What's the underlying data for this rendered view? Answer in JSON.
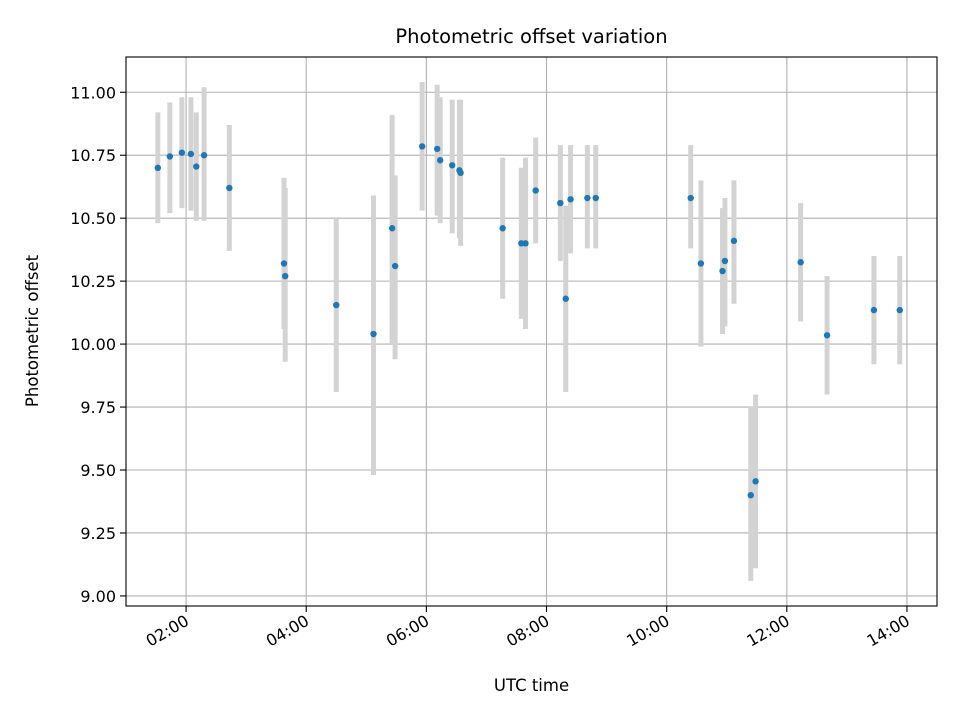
{
  "chart_data": {
    "type": "scatter",
    "title": "Photometric offset variation",
    "xlabel": "UTC time",
    "ylabel": "Photometric offset",
    "x_unit": "hours UTC",
    "xlim": [
      1.0,
      14.5
    ],
    "ylim": [
      8.96,
      11.14
    ],
    "x_ticks": [
      {
        "value": 2,
        "label": "02:00"
      },
      {
        "value": 4,
        "label": "04:00"
      },
      {
        "value": 6,
        "label": "06:00"
      },
      {
        "value": 8,
        "label": "08:00"
      },
      {
        "value": 10,
        "label": "10:00"
      },
      {
        "value": 12,
        "label": "12:00"
      },
      {
        "value": 14,
        "label": "14:00"
      }
    ],
    "y_ticks": [
      {
        "value": 9.0,
        "label": "9.00"
      },
      {
        "value": 9.25,
        "label": "9.25"
      },
      {
        "value": 9.5,
        "label": "9.50"
      },
      {
        "value": 9.75,
        "label": "9.75"
      },
      {
        "value": 10.0,
        "label": "10.00"
      },
      {
        "value": 10.25,
        "label": "10.25"
      },
      {
        "value": 10.5,
        "label": "10.50"
      },
      {
        "value": 10.75,
        "label": "10.75"
      },
      {
        "value": 11.0,
        "label": "11.00"
      }
    ],
    "grid": true,
    "point_color": "#1f77b4",
    "errorbar_color": "#d3d3d3",
    "points": [
      {
        "x": 1.53,
        "y": 10.7,
        "lo": 10.48,
        "hi": 10.92
      },
      {
        "x": 1.73,
        "y": 10.745,
        "lo": 10.52,
        "hi": 10.96
      },
      {
        "x": 1.93,
        "y": 10.76,
        "lo": 10.54,
        "hi": 10.98
      },
      {
        "x": 2.08,
        "y": 10.755,
        "lo": 10.53,
        "hi": 10.98
      },
      {
        "x": 2.17,
        "y": 10.705,
        "lo": 10.49,
        "hi": 10.92
      },
      {
        "x": 2.3,
        "y": 10.75,
        "lo": 10.49,
        "hi": 11.02
      },
      {
        "x": 2.72,
        "y": 10.62,
        "lo": 10.37,
        "hi": 10.87
      },
      {
        "x": 3.63,
        "y": 10.32,
        "lo": 10.06,
        "hi": 10.66
      },
      {
        "x": 3.65,
        "y": 10.27,
        "lo": 9.93,
        "hi": 10.62
      },
      {
        "x": 4.5,
        "y": 10.155,
        "lo": 9.81,
        "hi": 10.5
      },
      {
        "x": 5.12,
        "y": 10.04,
        "lo": 9.48,
        "hi": 10.59
      },
      {
        "x": 5.43,
        "y": 10.46,
        "lo": 10.0,
        "hi": 10.91
      },
      {
        "x": 5.48,
        "y": 10.31,
        "lo": 9.94,
        "hi": 10.67
      },
      {
        "x": 5.93,
        "y": 10.785,
        "lo": 10.53,
        "hi": 11.04
      },
      {
        "x": 6.18,
        "y": 10.775,
        "lo": 10.51,
        "hi": 11.03
      },
      {
        "x": 6.23,
        "y": 10.73,
        "lo": 10.48,
        "hi": 10.98
      },
      {
        "x": 6.43,
        "y": 10.71,
        "lo": 10.44,
        "hi": 10.97
      },
      {
        "x": 6.55,
        "y": 10.69,
        "lo": 10.42,
        "hi": 10.97
      },
      {
        "x": 6.57,
        "y": 10.68,
        "lo": 10.39,
        "hi": 10.97
      },
      {
        "x": 7.27,
        "y": 10.46,
        "lo": 10.18,
        "hi": 10.74
      },
      {
        "x": 7.58,
        "y": 10.4,
        "lo": 10.1,
        "hi": 10.7
      },
      {
        "x": 7.65,
        "y": 10.4,
        "lo": 10.06,
        "hi": 10.74
      },
      {
        "x": 7.82,
        "y": 10.61,
        "lo": 10.4,
        "hi": 10.82
      },
      {
        "x": 8.23,
        "y": 10.56,
        "lo": 10.33,
        "hi": 10.79
      },
      {
        "x": 8.32,
        "y": 10.18,
        "lo": 9.81,
        "hi": 10.55
      },
      {
        "x": 8.4,
        "y": 10.575,
        "lo": 10.36,
        "hi": 10.79
      },
      {
        "x": 8.68,
        "y": 10.58,
        "lo": 10.38,
        "hi": 10.79
      },
      {
        "x": 8.82,
        "y": 10.58,
        "lo": 10.38,
        "hi": 10.79
      },
      {
        "x": 10.4,
        "y": 10.58,
        "lo": 10.38,
        "hi": 10.79
      },
      {
        "x": 10.57,
        "y": 10.32,
        "lo": 9.99,
        "hi": 10.65
      },
      {
        "x": 10.93,
        "y": 10.29,
        "lo": 10.04,
        "hi": 10.54
      },
      {
        "x": 10.97,
        "y": 10.33,
        "lo": 10.07,
        "hi": 10.58
      },
      {
        "x": 11.12,
        "y": 10.41,
        "lo": 10.16,
        "hi": 10.65
      },
      {
        "x": 11.4,
        "y": 9.4,
        "lo": 9.06,
        "hi": 9.75
      },
      {
        "x": 11.48,
        "y": 9.455,
        "lo": 9.11,
        "hi": 9.8
      },
      {
        "x": 12.23,
        "y": 10.325,
        "lo": 10.09,
        "hi": 10.56
      },
      {
        "x": 12.67,
        "y": 10.035,
        "lo": 9.8,
        "hi": 10.27
      },
      {
        "x": 13.45,
        "y": 10.135,
        "lo": 9.92,
        "hi": 10.35
      },
      {
        "x": 13.88,
        "y": 10.135,
        "lo": 9.92,
        "hi": 10.35
      }
    ]
  }
}
